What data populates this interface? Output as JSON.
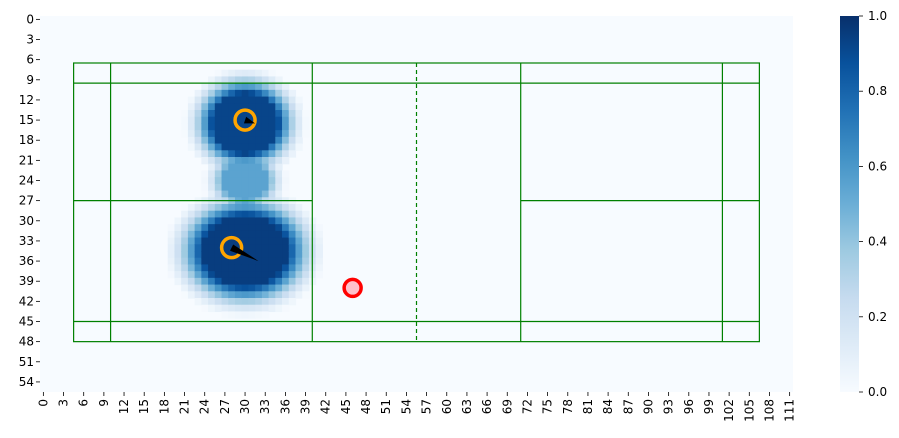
{
  "chart_data": {
    "type": "heatmap",
    "x_ticks": [
      "0",
      "3",
      "6",
      "9",
      "12",
      "15",
      "18",
      "21",
      "24",
      "27",
      "30",
      "33",
      "36",
      "39",
      "42",
      "45",
      "48",
      "51",
      "54",
      "57",
      "60",
      "63",
      "66",
      "69",
      "72",
      "75",
      "78",
      "81",
      "84",
      "87",
      "90",
      "93",
      "96",
      "99",
      "102",
      "105",
      "108",
      "111"
    ],
    "y_ticks": [
      "0",
      "3",
      "6",
      "9",
      "12",
      "15",
      "18",
      "21",
      "24",
      "27",
      "30",
      "33",
      "36",
      "39",
      "42",
      "45",
      "48",
      "51",
      "54"
    ],
    "xlim": [
      0,
      112
    ],
    "ylim": [
      0,
      56
    ],
    "colorbar": {
      "min": 0.0,
      "max": 1.0,
      "ticks": [
        "0.0",
        "0.2",
        "0.4",
        "0.6",
        "0.8",
        "1.0"
      ],
      "colormap": "Blues"
    },
    "blobs": [
      {
        "cx": 30.5,
        "cy": 16,
        "rx": 6.5,
        "ry": 6,
        "value": 0.92
      },
      {
        "cx": 30.5,
        "cy": 35,
        "rx": 8.5,
        "ry": 7,
        "value": 0.95
      },
      {
        "cx": 30.5,
        "cy": 24.5,
        "rx": 4.5,
        "ry": 4,
        "value": 0.55
      }
    ],
    "players": [
      {
        "x": 30.5,
        "y": 15.5,
        "arrow_dx": 1.5,
        "arrow_dy": 0.5,
        "color": "#FFA500"
      },
      {
        "x": 28.5,
        "y": 34.5,
        "arrow_dx": 4.0,
        "arrow_dy": 2.0,
        "color": "#FFA500"
      }
    ],
    "shuttle": {
      "x": 46.5,
      "y": 40.5,
      "fill": "#FFC0CB",
      "edge": "#FF0000"
    },
    "court": {
      "x0": 5,
      "x1": 107,
      "y0": 7,
      "y1": 48.5,
      "verticals": [
        10.5,
        40.5,
        71.5,
        101.5
      ],
      "net_x": 56,
      "horizontals": [
        10,
        45.5
      ],
      "service_center_y": 27.5,
      "line_color": "#008000"
    }
  }
}
